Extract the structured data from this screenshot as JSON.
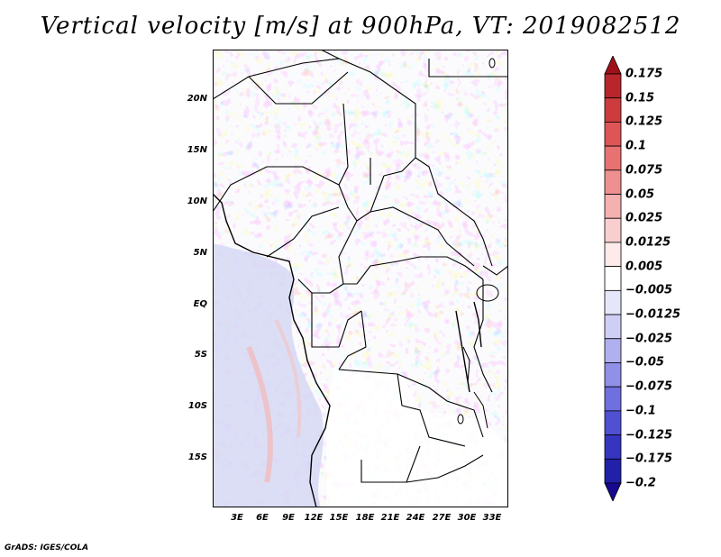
{
  "title": "Vertical velocity [m/s] at 900hPa, VT: 2019082512",
  "credit": "GrADS: IGES/COLA",
  "lat_labels": [
    "20N",
    "15N",
    "10N",
    "5N",
    "EQ",
    "5S",
    "10S",
    "15S"
  ],
  "lon_labels": [
    "3E",
    "6E",
    "9E",
    "12E",
    "15E",
    "18E",
    "21E",
    "24E",
    "27E",
    "30E",
    "33E"
  ],
  "colorbar": {
    "labels": [
      "0.175",
      "0.15",
      "0.125",
      "0.1",
      "0.075",
      "0.05",
      "0.025",
      "0.0125",
      "0.005",
      "−0.005",
      "−0.0125",
      "−0.025",
      "−0.05",
      "−0.075",
      "−0.1",
      "−0.125",
      "−0.175",
      "−0.2"
    ],
    "colors": [
      "#a01018",
      "#b8262b",
      "#cd3c3d",
      "#de5555",
      "#e87272",
      "#ef9090",
      "#f5b0b0",
      "#f9cece",
      "#fdeaea",
      "#ffffff",
      "#e6e6fa",
      "#cfcff6",
      "#b0b0f0",
      "#9090e8",
      "#6f6fdf",
      "#5050d2",
      "#3535c0",
      "#2020a8",
      "#180890"
    ]
  }
}
